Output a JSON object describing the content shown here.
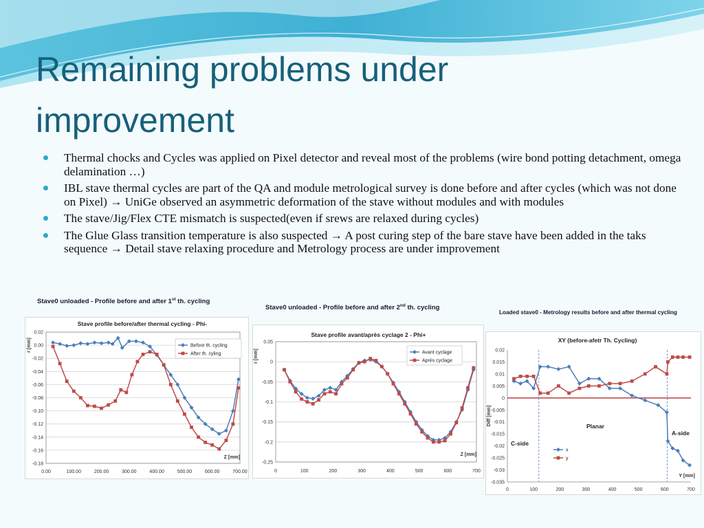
{
  "slide": {
    "title_line1": "Remaining problems under",
    "title_line2": "improvement",
    "bullets": [
      "Thermal chocks and Cycles was applied on Pixel detector and reveal most of the problems (wire bond potting detachment, omega delamination …)",
      "IBL stave thermal cycles are part of the QA and module metrological survey is done before and after cycles (which was not done on Pixel) → UniGe observed an asymmetric deformation of the stave without modules and with modules",
      "The stave/Jig/Flex CTE mismatch is suspected(even if srews are relaxed during cycles)",
      "The Glue Glass transition temperature is also suspected → A post curing step of the bare stave have been added in the taks sequence → Detail stave relaxing procedure and Metrology process are under improvement"
    ],
    "caption1": {
      "pre": "Stave0 unloaded - Profile before and after 1",
      "sup": "st",
      "post": " th. cycling"
    },
    "caption2": {
      "pre": "Stave0 unloaded - Profile before and after 2",
      "sup": "nd",
      "post": " th. cycling"
    },
    "caption3": "Loaded stave0 - Metrology results before and after thermal cycling",
    "colors": {
      "title": "#17607a",
      "bullet": "#2ea9c8",
      "blue": "#4a7ebb",
      "red": "#be4b48",
      "zero_line": "#c0504d"
    }
  },
  "chart_data": [
    {
      "type": "line",
      "title": "Stave profile before/after thermal cycling - Phi-",
      "xlabel": "Z [mm]",
      "ylabel": "r [mm]",
      "xlim": [
        0,
        700
      ],
      "ylim": [
        -0.18,
        0.02
      ],
      "x_ticks": [
        "0.00",
        "100.00",
        "200.00",
        "300.00",
        "400.00",
        "500.00",
        "600.00",
        "700.00"
      ],
      "y_ticks": [
        "0.02",
        "0.00",
        "-0.02",
        "-0.04",
        "-0.06",
        "-0.08",
        "-0.10",
        "-0.12",
        "-0.14",
        "-0.16",
        "-0.18"
      ],
      "grid": true,
      "legend": "top-right",
      "series": [
        {
          "name": "Before th. cycling",
          "color": "#4a7ebb",
          "x": [
            25,
            50,
            75,
            100,
            125,
            150,
            175,
            200,
            225,
            240,
            260,
            275,
            300,
            325,
            350,
            375,
            400,
            425,
            450,
            475,
            500,
            525,
            550,
            575,
            600,
            625,
            650,
            675,
            695
          ],
          "y": [
            0.004,
            0.002,
            -0.001,
            0.0,
            0.003,
            0.002,
            0.004,
            0.003,
            0.004,
            0.002,
            0.011,
            -0.004,
            0.006,
            0.006,
            0.004,
            -0.002,
            -0.015,
            -0.03,
            -0.045,
            -0.06,
            -0.08,
            -0.095,
            -0.11,
            -0.12,
            -0.128,
            -0.135,
            -0.13,
            -0.1,
            -0.052
          ]
        },
        {
          "name": "After th. cyling",
          "color": "#be4b48",
          "x": [
            25,
            50,
            75,
            100,
            125,
            150,
            175,
            200,
            225,
            250,
            270,
            290,
            310,
            330,
            350,
            375,
            400,
            425,
            450,
            475,
            500,
            525,
            550,
            575,
            600,
            625,
            650,
            675,
            695
          ],
          "y": [
            -0.002,
            -0.028,
            -0.055,
            -0.07,
            -0.08,
            -0.092,
            -0.093,
            -0.096,
            -0.091,
            -0.085,
            -0.068,
            -0.072,
            -0.045,
            -0.025,
            -0.014,
            -0.01,
            -0.014,
            -0.03,
            -0.06,
            -0.085,
            -0.105,
            -0.125,
            -0.14,
            -0.148,
            -0.152,
            -0.158,
            -0.145,
            -0.12,
            -0.065
          ]
        }
      ]
    },
    {
      "type": "line",
      "title": "Stave profile avant/après cyclage 2 - Phi+",
      "xlabel": "Z [mm]",
      "ylabel": "r [mm]",
      "xlim": [
        0,
        700
      ],
      "ylim": [
        -0.25,
        0.05
      ],
      "x_ticks": [
        "0",
        "100",
        "200",
        "300",
        "400",
        "500",
        "600",
        "700"
      ],
      "y_ticks": [
        "0.05",
        "0",
        "-0.05",
        "-0.1",
        "-0.15",
        "-0.2",
        "-0.25"
      ],
      "grid": true,
      "legend": "top-right",
      "series": [
        {
          "name": "Avant cyclage",
          "color": "#4a7ebb",
          "x": [
            30,
            50,
            70,
            90,
            110,
            130,
            150,
            170,
            190,
            210,
            230,
            250,
            270,
            290,
            310,
            330,
            350,
            370,
            390,
            410,
            430,
            450,
            470,
            490,
            510,
            530,
            550,
            570,
            590,
            610,
            630,
            650,
            670,
            690
          ],
          "y": [
            -0.02,
            -0.047,
            -0.067,
            -0.08,
            -0.09,
            -0.092,
            -0.085,
            -0.07,
            -0.065,
            -0.07,
            -0.05,
            -0.035,
            -0.018,
            -0.002,
            0.003,
            0.005,
            0.0,
            -0.012,
            -0.03,
            -0.052,
            -0.075,
            -0.1,
            -0.125,
            -0.15,
            -0.17,
            -0.185,
            -0.195,
            -0.195,
            -0.19,
            -0.175,
            -0.15,
            -0.12,
            -0.07,
            -0.02
          ]
        },
        {
          "name": "Après cyclage",
          "color": "#be4b48",
          "x": [
            30,
            50,
            70,
            90,
            110,
            130,
            150,
            170,
            190,
            210,
            230,
            250,
            270,
            290,
            310,
            330,
            350,
            370,
            390,
            410,
            430,
            450,
            470,
            490,
            510,
            530,
            550,
            570,
            590,
            610,
            630,
            650,
            670,
            690
          ],
          "y": [
            -0.02,
            -0.05,
            -0.075,
            -0.093,
            -0.1,
            -0.105,
            -0.095,
            -0.08,
            -0.075,
            -0.08,
            -0.055,
            -0.04,
            -0.02,
            -0.003,
            0.0,
            0.008,
            0.003,
            -0.012,
            -0.03,
            -0.055,
            -0.08,
            -0.105,
            -0.13,
            -0.155,
            -0.175,
            -0.19,
            -0.2,
            -0.2,
            -0.197,
            -0.18,
            -0.152,
            -0.115,
            -0.065,
            -0.015
          ]
        }
      ]
    },
    {
      "type": "line",
      "title": "XY (before-afetr Th. Cycling)",
      "xlabel": "Y [mm]",
      "ylabel": "Diff [mm]",
      "xlim": [
        0,
        700
      ],
      "ylim": [
        -0.035,
        0.02
      ],
      "x_ticks": [
        "0",
        "100",
        "200",
        "300",
        "400",
        "500",
        "600",
        "700"
      ],
      "y_ticks": [
        "0.02",
        "0.015",
        "0.01",
        "0.005",
        "0",
        "-0.005",
        "-0.01",
        "-0.015",
        "-0.02",
        "-0.025",
        "-0.03",
        "-0.035"
      ],
      "grid": false,
      "legend": "bottom",
      "annotations": [
        "C-side",
        "Planar",
        "A-side"
      ],
      "series": [
        {
          "name": "x",
          "color": "#4a7ebb",
          "x": [
            25,
            50,
            75,
            100,
            125,
            155,
            195,
            235,
            275,
            310,
            350,
            390,
            430,
            475,
            525,
            575,
            608,
            612,
            630,
            650,
            670,
            695
          ],
          "y": [
            0.007,
            0.006,
            0.007,
            0.004,
            0.013,
            0.013,
            0.012,
            0.013,
            0.006,
            0.008,
            0.008,
            0.004,
            0.004,
            0.001,
            -0.001,
            -0.003,
            -0.006,
            -0.018,
            -0.021,
            -0.022,
            -0.026,
            -0.028
          ]
        },
        {
          "name": "y",
          "color": "#be4b48",
          "x": [
            25,
            50,
            75,
            100,
            125,
            155,
            195,
            235,
            275,
            310,
            350,
            390,
            430,
            475,
            525,
            565,
            608,
            612,
            630,
            650,
            670,
            695
          ],
          "y": [
            0.008,
            0.009,
            0.009,
            0.009,
            0.002,
            0.002,
            0.005,
            0.002,
            0.004,
            0.005,
            0.005,
            0.006,
            0.006,
            0.007,
            0.01,
            0.013,
            0.01,
            0.015,
            0.017,
            0.017,
            0.017,
            0.017
          ]
        }
      ]
    }
  ]
}
